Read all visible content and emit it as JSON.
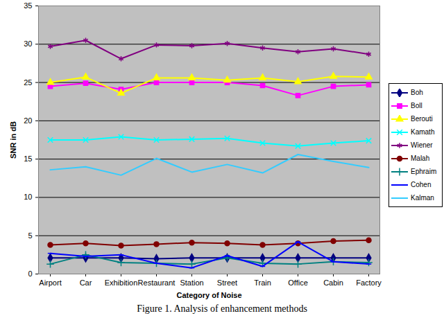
{
  "chart_data": {
    "type": "line",
    "title": "Figure 1. Analysis of enhancement methods",
    "x_label": "Category of Noise",
    "y_label": "SNR in dB",
    "categories": [
      "Airport",
      "Car",
      "Exhibition",
      "Restaurant",
      "Station",
      "Street",
      "Train",
      "Office",
      "Cabin",
      "Factory"
    ],
    "ylim": [
      0,
      35
    ],
    "yticks": [
      0,
      5,
      10,
      15,
      20,
      25,
      30,
      35
    ],
    "grid": true,
    "legend": "right",
    "series": [
      {
        "name": "Boh",
        "color": "#000080",
        "marker": "diamond",
        "values": [
          2.1,
          2.1,
          2.1,
          2.0,
          2.1,
          2.1,
          2.1,
          2.1,
          2.1,
          2.1
        ]
      },
      {
        "name": "Boll",
        "color": "#ff00ff",
        "marker": "square",
        "values": [
          24.5,
          24.9,
          24.1,
          25.0,
          25.0,
          25.0,
          24.6,
          23.3,
          24.5,
          24.7
        ]
      },
      {
        "name": "Berouti",
        "color": "#ffff00",
        "marker": "triangle",
        "values": [
          25.0,
          25.7,
          23.6,
          25.6,
          25.6,
          25.3,
          25.6,
          25.1,
          25.8,
          25.7
        ]
      },
      {
        "name": "Kamath",
        "color": "#00ffff",
        "marker": "times",
        "values": [
          17.5,
          17.5,
          17.9,
          17.5,
          17.6,
          17.7,
          17.1,
          16.7,
          17.1,
          17.4
        ]
      },
      {
        "name": "Wiener",
        "color": "#800080",
        "marker": "asterisk",
        "values": [
          29.7,
          30.5,
          28.1,
          29.9,
          29.8,
          30.1,
          29.5,
          29.0,
          29.4,
          28.7
        ]
      },
      {
        "name": "Malah",
        "color": "#800000",
        "marker": "circle",
        "values": [
          3.8,
          4.0,
          3.7,
          3.9,
          4.1,
          4.0,
          3.8,
          4.0,
          4.3,
          4.4
        ]
      },
      {
        "name": "Ephraim",
        "color": "#008080",
        "marker": "plus",
        "values": [
          1.3,
          2.5,
          1.5,
          1.4,
          1.3,
          2.1,
          1.4,
          1.3,
          1.6,
          1.5
        ]
      },
      {
        "name": "Cohen",
        "color": "#0000ff",
        "marker": "dash",
        "values": [
          2.7,
          2.3,
          2.5,
          1.4,
          0.8,
          2.4,
          1.0,
          4.2,
          1.6,
          1.3
        ]
      },
      {
        "name": "Kalman",
        "color": "#33ccff",
        "marker": "none",
        "values": [
          13.6,
          14.0,
          12.9,
          15.1,
          13.3,
          14.3,
          13.2,
          15.6,
          14.7,
          13.9
        ]
      }
    ]
  }
}
